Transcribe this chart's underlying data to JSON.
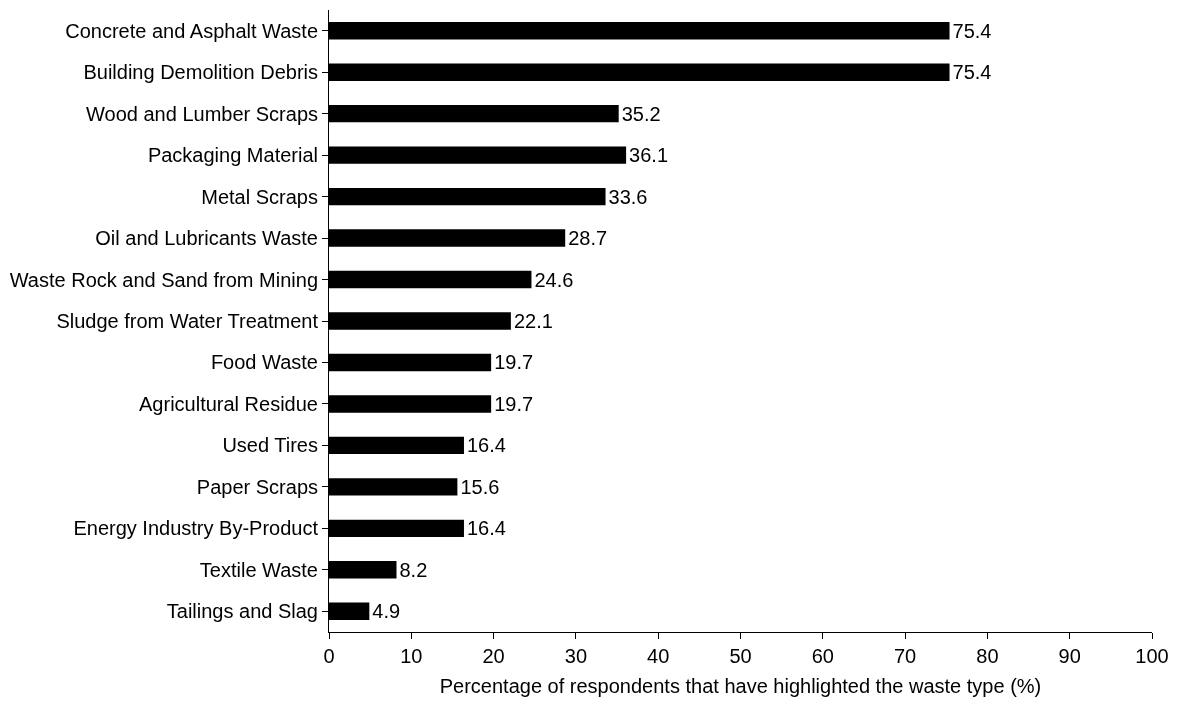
{
  "chart_data": {
    "type": "bar",
    "orientation": "horizontal",
    "categories": [
      "Concrete and Asphalt Waste",
      "Building Demolition Debris",
      "Wood and Lumber Scraps",
      "Packaging Material",
      "Metal Scraps",
      "Oil and Lubricants Waste",
      "Waste Rock and Sand from Mining",
      "Sludge from Water Treatment",
      "Food Waste",
      "Agricultural Residue",
      "Used Tires",
      "Paper Scraps",
      "Energy Industry By-Product",
      "Textile Waste",
      "Tailings and Slag"
    ],
    "values": [
      75.4,
      75.4,
      35.2,
      36.1,
      33.6,
      28.7,
      24.6,
      22.1,
      19.7,
      19.7,
      16.4,
      15.6,
      16.4,
      8.2,
      4.9
    ],
    "color": "#000000",
    "data_labels": true,
    "xlabel": "Percentage of respondents that have highlighted the waste type (%)",
    "xlim": [
      0,
      100
    ],
    "xticks": [
      0,
      10,
      20,
      30,
      40,
      50,
      60,
      70,
      80,
      90,
      100
    ]
  }
}
